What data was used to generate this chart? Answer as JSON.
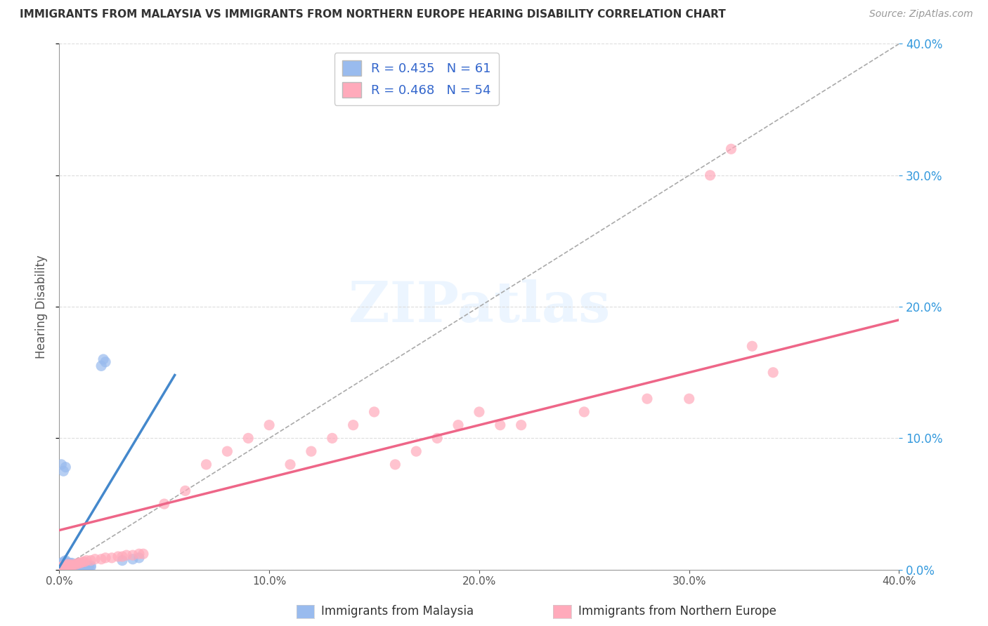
{
  "title": "IMMIGRANTS FROM MALAYSIA VS IMMIGRANTS FROM NORTHERN EUROPE HEARING DISABILITY CORRELATION CHART",
  "source": "Source: ZipAtlas.com",
  "ylabel": "Hearing Disability",
  "legend_label1": "Immigrants from Malaysia",
  "legend_label2": "Immigrants from Northern Europe",
  "R1": 0.435,
  "N1": 61,
  "R2": 0.468,
  "N2": 54,
  "color1": "#99BBEE",
  "color2": "#FFAABB",
  "trendline_color1": "#4488CC",
  "trendline_color2": "#EE6688",
  "xmin": 0.0,
  "xmax": 0.4,
  "ymin": 0.0,
  "ymax": 0.4,
  "background_color": "#ffffff",
  "grid_color": "#cccccc",
  "legend_text_color": "#3366CC",
  "malaysia_x": [
    0.001,
    0.001,
    0.001,
    0.001,
    0.001,
    0.002,
    0.002,
    0.002,
    0.002,
    0.002,
    0.002,
    0.003,
    0.003,
    0.003,
    0.003,
    0.003,
    0.003,
    0.003,
    0.004,
    0.004,
    0.004,
    0.004,
    0.004,
    0.005,
    0.005,
    0.005,
    0.005,
    0.006,
    0.006,
    0.006,
    0.006,
    0.007,
    0.007,
    0.007,
    0.008,
    0.008,
    0.008,
    0.009,
    0.009,
    0.01,
    0.01,
    0.01,
    0.011,
    0.011,
    0.012,
    0.012,
    0.013,
    0.013,
    0.014,
    0.014,
    0.015,
    0.015,
    0.001,
    0.002,
    0.003,
    0.02,
    0.021,
    0.022,
    0.03,
    0.035,
    0.038
  ],
  "malaysia_y": [
    0.001,
    0.002,
    0.003,
    0.004,
    0.005,
    0.001,
    0.002,
    0.003,
    0.004,
    0.005,
    0.006,
    0.001,
    0.002,
    0.003,
    0.004,
    0.005,
    0.006,
    0.007,
    0.001,
    0.002,
    0.003,
    0.004,
    0.005,
    0.002,
    0.003,
    0.004,
    0.005,
    0.002,
    0.003,
    0.004,
    0.005,
    0.002,
    0.003,
    0.004,
    0.002,
    0.003,
    0.004,
    0.002,
    0.003,
    0.002,
    0.003,
    0.004,
    0.002,
    0.003,
    0.002,
    0.003,
    0.002,
    0.003,
    0.002,
    0.003,
    0.002,
    0.003,
    0.08,
    0.075,
    0.078,
    0.155,
    0.16,
    0.158,
    0.007,
    0.008,
    0.009
  ],
  "north_europe_x": [
    0.001,
    0.001,
    0.002,
    0.002,
    0.003,
    0.003,
    0.004,
    0.004,
    0.005,
    0.005,
    0.006,
    0.007,
    0.008,
    0.009,
    0.01,
    0.011,
    0.012,
    0.013,
    0.015,
    0.017,
    0.02,
    0.022,
    0.025,
    0.028,
    0.03,
    0.032,
    0.035,
    0.038,
    0.04,
    0.05,
    0.06,
    0.07,
    0.08,
    0.09,
    0.1,
    0.11,
    0.12,
    0.13,
    0.14,
    0.15,
    0.16,
    0.17,
    0.18,
    0.19,
    0.2,
    0.21,
    0.22,
    0.25,
    0.28,
    0.3,
    0.31,
    0.32,
    0.33,
    0.34
  ],
  "north_europe_y": [
    0.001,
    0.002,
    0.001,
    0.003,
    0.002,
    0.003,
    0.002,
    0.004,
    0.003,
    0.004,
    0.003,
    0.004,
    0.004,
    0.005,
    0.005,
    0.006,
    0.006,
    0.007,
    0.007,
    0.008,
    0.008,
    0.009,
    0.009,
    0.01,
    0.01,
    0.011,
    0.011,
    0.012,
    0.012,
    0.05,
    0.06,
    0.08,
    0.09,
    0.1,
    0.11,
    0.08,
    0.09,
    0.1,
    0.11,
    0.12,
    0.08,
    0.09,
    0.1,
    0.11,
    0.12,
    0.11,
    0.11,
    0.12,
    0.13,
    0.13,
    0.3,
    0.32,
    0.17,
    0.15
  ],
  "trendline1_x0": 0.0,
  "trendline1_x1": 0.055,
  "trendline1_y0": 0.002,
  "trendline1_y1": 0.148,
  "trendline2_x0": 0.0,
  "trendline2_x1": 0.4,
  "trendline2_y0": 0.03,
  "trendline2_y1": 0.19
}
